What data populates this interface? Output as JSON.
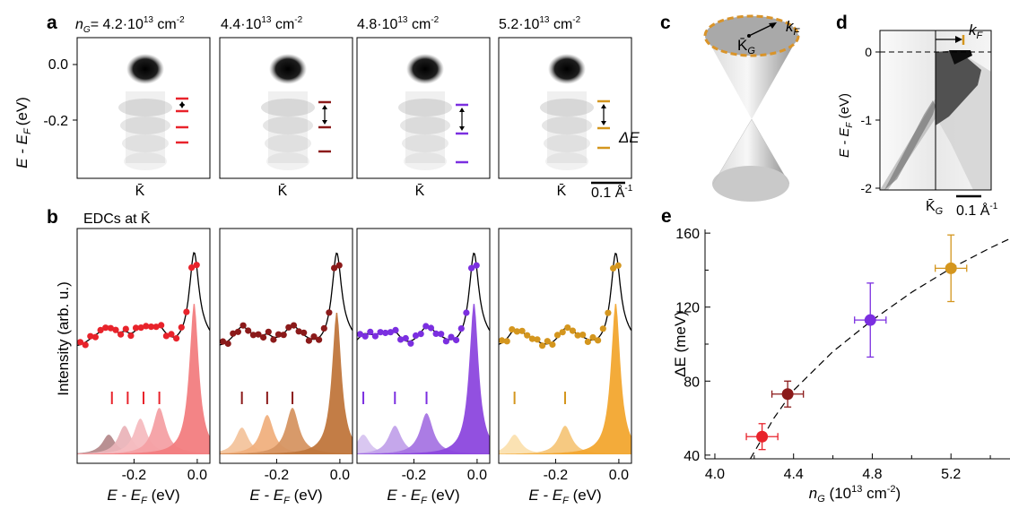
{
  "panel_letters": {
    "a": "a",
    "b": "b",
    "c": "c",
    "d": "d",
    "e": "e"
  },
  "panel_a": {
    "density_prefix": "n",
    "density_sub": "G",
    "densities": [
      {
        "mantissa": "= 4.2·10",
        "exp": "13",
        "unit": " cm",
        "unit_exp": "-2"
      },
      {
        "mantissa": "4.4·10",
        "exp": "13",
        "unit": " cm",
        "unit_exp": "-2"
      },
      {
        "mantissa": "4.8·10",
        "exp": "13",
        "unit": " cm",
        "unit_exp": "-2"
      },
      {
        "mantissa": "5.2·10",
        "exp": "13",
        "unit": " cm",
        "unit_exp": "-2"
      }
    ],
    "ylabel": "E - E",
    "ylabel_sub": "F",
    "ylabel_unit": "(eV)",
    "yticks": [
      "0.0",
      "-0.2"
    ],
    "xtick": "K̄",
    "delta_label": "ΔE",
    "scalebar": "0.1 Å",
    "scalebar_exp": "-1",
    "colors": [
      "#e8232b",
      "#8b1a1a",
      "#7b2fe0",
      "#d4961e"
    ]
  },
  "panel_b": {
    "title": "EDCs at K̄",
    "ylabel": "Intensity (arb. u.)",
    "xlabel": "E - E",
    "xlabel_sub": "F",
    "xlabel_unit": " (eV)",
    "xticks": [
      "-0.2",
      "0.0"
    ],
    "fill_colors": [
      [
        "#f27d80",
        "#f4a0a4",
        "#f5bcc0",
        "#eab4b9",
        "#b58a8c"
      ],
      [
        "#c0763c",
        "#d69562",
        "#f0b07e",
        "#f3c49d",
        "#f0d3b8"
      ],
      [
        "#8c47de",
        "#a675e3",
        "#c2a2ea",
        "#d7c4f0"
      ],
      [
        "#f2a72f",
        "#f6c67a",
        "#fbe0af"
      ]
    ],
    "dot_colors": [
      "#e8232b",
      "#8b1a1a",
      "#7b2fe0",
      "#d4961e"
    ]
  },
  "panel_c": {
    "kf": "k",
    "kf_sub": "F",
    "kbar": "K̄",
    "kbar_sub": "G"
  },
  "panel_d": {
    "ylabel": "E - E",
    "ylabel_sub": "F",
    "ylabel_unit": " (eV)",
    "yticks": [
      "0",
      "-1",
      "-2"
    ],
    "kf": "k",
    "kf_sub": "F",
    "xtick": "K̄",
    "xtick_sub": "G",
    "scalebar": "0.1 Å",
    "scalebar_exp": "-1"
  },
  "chart_data": {
    "type": "scatter",
    "title": "",
    "xlabel": "n_G (10^13 cm^-2)",
    "ylabel": "ΔE (meV)",
    "xlim": [
      3.95,
      5.5
    ],
    "ylim": [
      38,
      162
    ],
    "xticks": [
      4.0,
      4.4,
      4.8,
      5.2
    ],
    "yticks": [
      40,
      80,
      120,
      160
    ],
    "grid": false,
    "points": [
      {
        "x": 4.24,
        "y": 50,
        "xerr": 0.08,
        "yerr": 7,
        "color": "#e8232b"
      },
      {
        "x": 4.37,
        "y": 73,
        "xerr": 0.08,
        "yerr": 7,
        "color": "#8b1a1a"
      },
      {
        "x": 4.79,
        "y": 113,
        "xerr": 0.08,
        "yerr": 20,
        "color": "#7b2fe0"
      },
      {
        "x": 5.2,
        "y": 141,
        "xerr": 0.08,
        "yerr": 18,
        "color": "#d4961e"
      }
    ],
    "fit": {
      "style": "dashed",
      "x": [
        4.18,
        4.3,
        4.4,
        4.6,
        4.8,
        5.0,
        5.2,
        5.4,
        5.5
      ],
      "y": [
        38,
        60,
        75,
        96,
        113,
        128,
        141,
        152,
        157
      ]
    }
  },
  "panel_e": {
    "xlabel": "n",
    "xlabel_sub": "G",
    "xlabel_rest": " (10",
    "xlabel_exp": "13",
    "xlabel_unit": " cm",
    "xlabel_unit_exp": "-2",
    "xlabel_close": ")",
    "ylabel": "ΔE (meV)"
  }
}
